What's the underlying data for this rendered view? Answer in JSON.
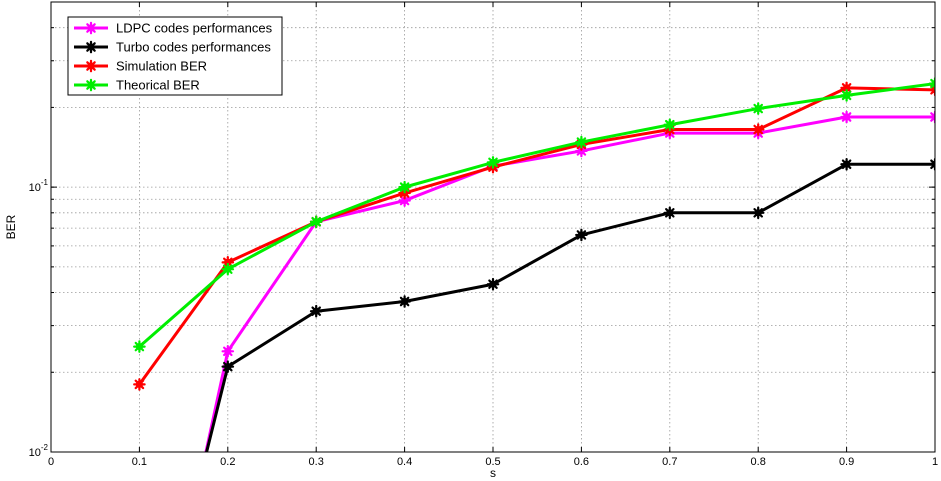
{
  "chart_data": {
    "type": "line",
    "title": "",
    "xlabel": "s",
    "ylabel": "BER",
    "xlim": [
      0,
      1
    ],
    "ylim": [
      0.01,
      0.5
    ],
    "yscale": "log",
    "grid": true,
    "legend_position": "top-left",
    "x_ticks": [
      0,
      0.1,
      0.2,
      0.3,
      0.4,
      0.5,
      0.6,
      0.7,
      0.8,
      0.9,
      1
    ],
    "x_tick_labels": [
      "0",
      "0.1",
      "0.2",
      "0.3",
      "0.4",
      "0.5",
      "0.6",
      "0.7",
      "0.8",
      "0.9",
      "1"
    ],
    "y_tick_labels": [
      {
        "value": 0.01,
        "base": "10",
        "exp": "-2"
      },
      {
        "value": 0.1,
        "base": "10",
        "exp": "-1"
      }
    ],
    "x": [
      0.1,
      0.2,
      0.3,
      0.4,
      0.5,
      0.6,
      0.7,
      0.8,
      0.9,
      1
    ],
    "series": [
      {
        "name": " LDPC codes performances",
        "color": "#ff00ff",
        "values": [
          null,
          0.024,
          0.074,
          0.089,
          0.12,
          0.137,
          0.16,
          0.16,
          0.184,
          0.184
        ],
        "lead_in": {
          "x": 0.17,
          "y": 0.0083
        }
      },
      {
        "name": "Turbo codes performances",
        "color": "#000000",
        "values": [
          null,
          0.021,
          0.034,
          0.037,
          0.043,
          0.066,
          0.08,
          0.08,
          0.122,
          0.122
        ],
        "lead_in": {
          "x": 0.17,
          "y": 0.0083
        }
      },
      {
        "name": "Simulation BER",
        "color": "#ff0000",
        "values": [
          0.018,
          0.052,
          0.074,
          0.095,
          0.119,
          0.145,
          0.165,
          0.165,
          0.237,
          0.233
        ]
      },
      {
        "name": "Theorical BER",
        "color": "#00ee00",
        "values": [
          0.025,
          0.049,
          0.074,
          0.1,
          0.124,
          0.148,
          0.172,
          0.198,
          0.222,
          0.246
        ]
      }
    ]
  }
}
